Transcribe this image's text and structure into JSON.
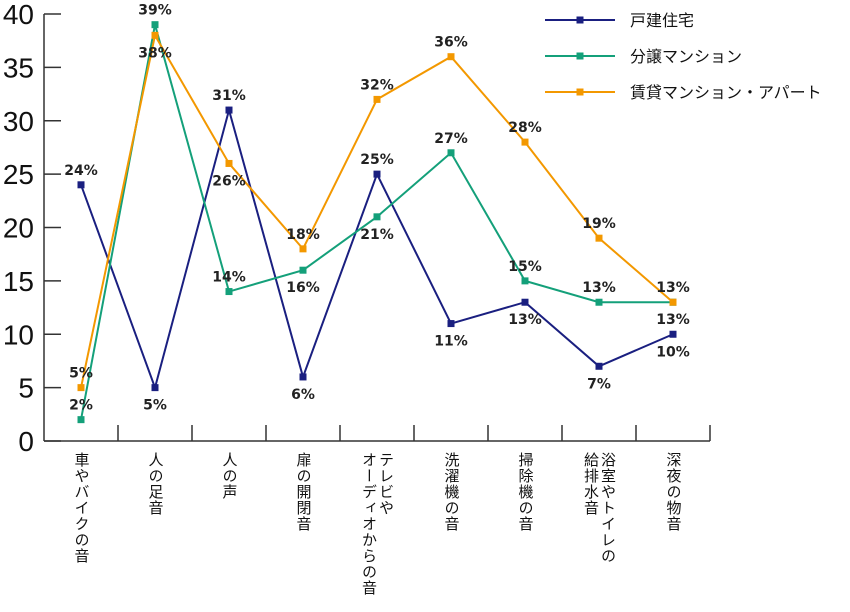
{
  "chart_data": {
    "type": "line",
    "title": "",
    "xlabel": "",
    "ylabel": "",
    "ylim": [
      0,
      40
    ],
    "yticks": [
      "0",
      "5",
      "10",
      "15",
      "20",
      "25",
      "30",
      "35",
      "40"
    ],
    "categories": [
      "車やバイクの音",
      "人の足音",
      "人の声",
      "扉の開閉音",
      "テレビや\nオーディオからの音",
      "洗濯機の音",
      "掃除機の音",
      "浴室やトイレの\n給排水音",
      "深夜の物音"
    ],
    "legend_position": "top-right",
    "series": [
      {
        "name": "戸建住宅",
        "color": "#1a1f80",
        "values": [
          24,
          5,
          31,
          6,
          25,
          11,
          13,
          7,
          10
        ],
        "labels": [
          "24%",
          "5%",
          "31%",
          "6%",
          "25%",
          "11%",
          "13%",
          "7%",
          "10%"
        ],
        "label_pos": [
          "above",
          "below",
          "above",
          "below",
          "above",
          "below",
          "below",
          "below",
          "below"
        ]
      },
      {
        "name": "分譲マンション",
        "color": "#14a07a",
        "values": [
          2,
          39,
          14,
          16,
          21,
          27,
          15,
          13,
          13
        ],
        "labels": [
          "2%",
          "39%",
          "14%",
          "16%",
          "21%",
          "27%",
          "15%",
          "13%",
          "13%"
        ],
        "label_pos": [
          "above",
          "above",
          "above",
          "below",
          "below",
          "above",
          "above",
          "above",
          "below"
        ]
      },
      {
        "name": "賃貸マンション・アパート",
        "color": "#f39800",
        "values": [
          5,
          38,
          26,
          18,
          32,
          36,
          28,
          19,
          13
        ],
        "labels": [
          "5%",
          "38%",
          "26%",
          "18%",
          "32%",
          "36%",
          "28%",
          "19%",
          "13%"
        ],
        "label_pos": [
          "above",
          "below",
          "below",
          "above",
          "above",
          "above",
          "above",
          "above",
          "above"
        ]
      }
    ]
  }
}
